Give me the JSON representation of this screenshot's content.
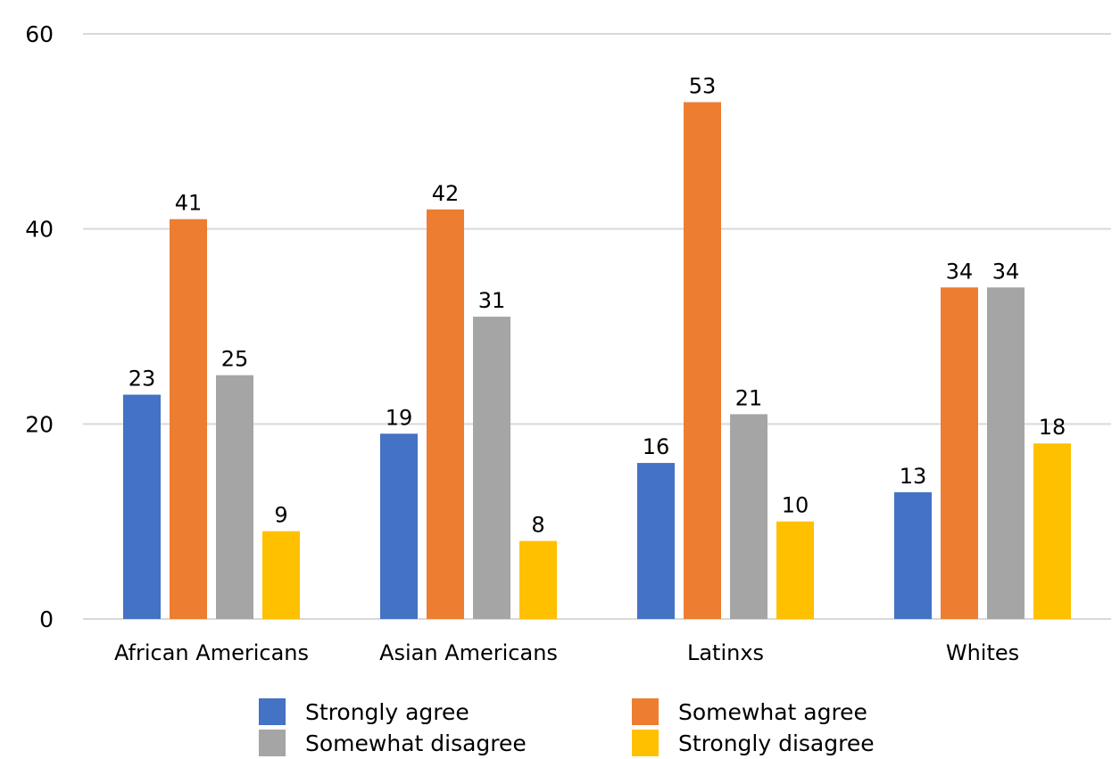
{
  "chart_data": {
    "type": "bar",
    "title": "",
    "xlabel": "",
    "ylabel": "",
    "ylim": [
      0,
      60
    ],
    "yticks": [
      0,
      20,
      40,
      60
    ],
    "grid": true,
    "legend_position": "bottom",
    "categories": [
      "African Americans",
      "Asian Americans",
      "Latinxs",
      "Whites"
    ],
    "series": [
      {
        "name": "Strongly agree",
        "color": "#4472C4",
        "values": [
          23,
          19,
          16,
          13
        ]
      },
      {
        "name": "Somewhat agree",
        "color": "#ED7D31",
        "values": [
          41,
          42,
          53,
          34
        ]
      },
      {
        "name": "Somewhat disagree",
        "color": "#A5A5A5",
        "values": [
          25,
          31,
          21,
          34
        ]
      },
      {
        "name": "Strongly disagree",
        "color": "#FFC000",
        "values": [
          9,
          8,
          10,
          18
        ]
      }
    ]
  }
}
